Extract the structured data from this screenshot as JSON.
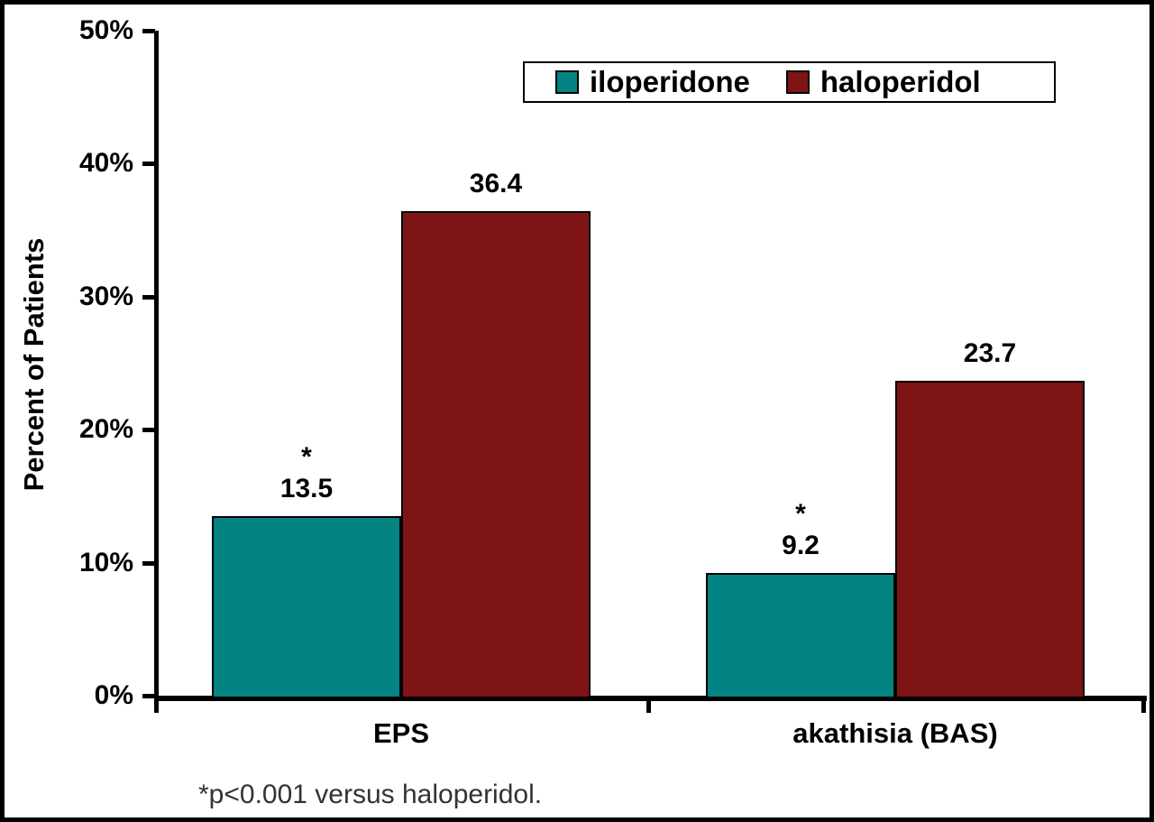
{
  "figure": {
    "background": "#ffffff",
    "border_color": "#000000",
    "footnote": "*p<0.001 versus haloperidol."
  },
  "chart_data": {
    "type": "bar",
    "title": "",
    "xlabel": "",
    "ylabel": "Percent of Patients",
    "categories": [
      "EPS",
      "akathisia (BAS)"
    ],
    "series": [
      {
        "name": "iloperidone",
        "color": "#038482",
        "values": [
          13.5,
          9.2
        ],
        "value_labels": [
          "13.5",
          "9.2"
        ],
        "annotations": [
          "*",
          "*"
        ]
      },
      {
        "name": "haloperidol",
        "color": "#7F1416",
        "values": [
          36.4,
          23.7
        ],
        "value_labels": [
          "36.4",
          "23.7"
        ],
        "annotations": [
          "",
          ""
        ]
      }
    ],
    "ylim": [
      0,
      50
    ],
    "ytick_values": [
      0,
      10,
      20,
      30,
      40,
      50
    ],
    "yticks": [
      "0%",
      "10%",
      "20%",
      "30%",
      "40%",
      "50%"
    ],
    "grid": false,
    "legend_position": "top-center-right",
    "axis_color": "#000000"
  }
}
